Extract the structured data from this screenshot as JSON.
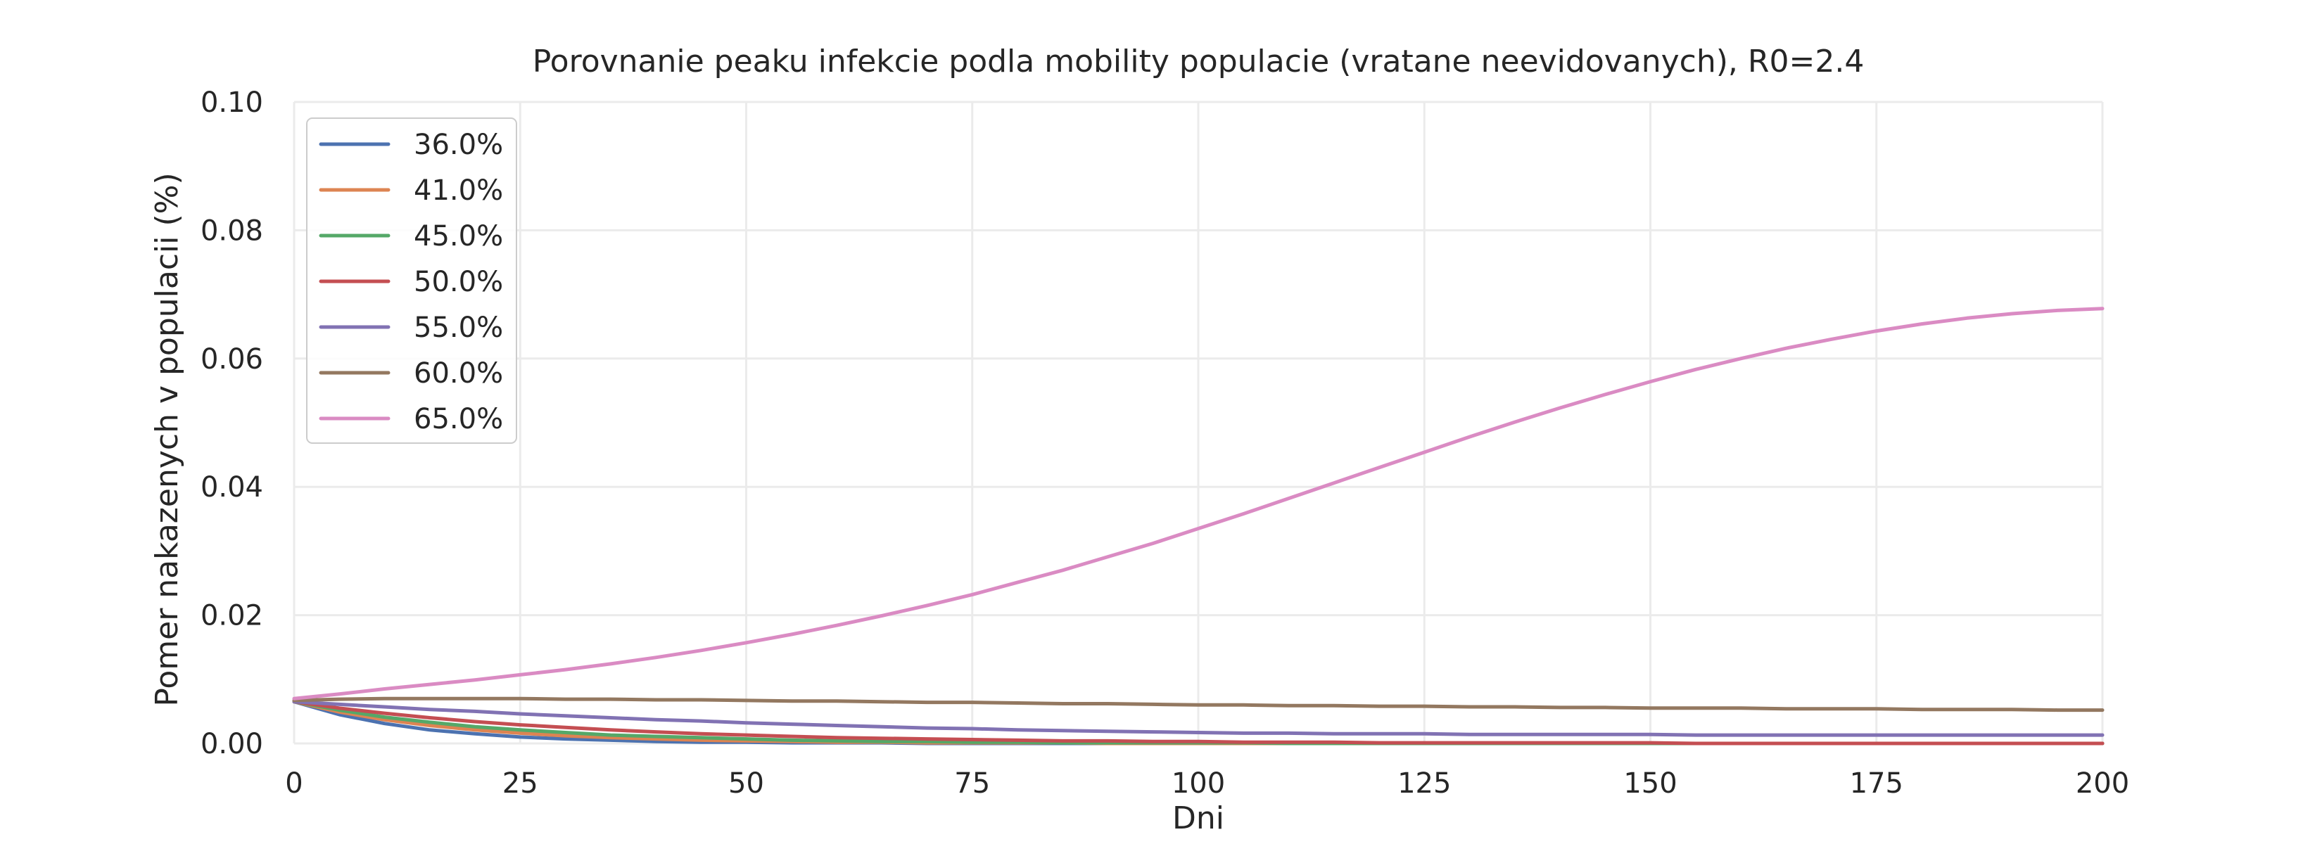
{
  "chart_data": {
    "type": "line",
    "title": "Porovnanie peaku infekcie podla mobility populacie (vratane neevidovanych), R0=2.4",
    "xlabel": "Dni",
    "ylabel": "Pomer nakazenych v populacii (%)",
    "xlim": [
      0,
      200
    ],
    "ylim": [
      0,
      0.1
    ],
    "x_ticks": [
      0,
      25,
      50,
      75,
      100,
      125,
      150,
      175,
      200
    ],
    "y_ticks": [
      0.0,
      0.02,
      0.04,
      0.06,
      0.08,
      0.1
    ],
    "x_tick_labels": [
      "0",
      "25",
      "50",
      "75",
      "100",
      "125",
      "150",
      "175",
      "200"
    ],
    "y_tick_labels": [
      "0.00",
      "0.02",
      "0.04",
      "0.06",
      "0.08",
      "0.10"
    ],
    "grid": true,
    "legend_position": "top-left",
    "x": [
      0,
      5,
      10,
      15,
      20,
      25,
      30,
      35,
      40,
      45,
      50,
      55,
      60,
      65,
      70,
      75,
      80,
      85,
      90,
      95,
      100,
      105,
      110,
      115,
      120,
      125,
      130,
      135,
      140,
      145,
      150,
      155,
      160,
      165,
      170,
      175,
      180,
      185,
      190,
      195,
      200
    ],
    "series": [
      {
        "name": "36.0%",
        "color": "#4C72B0",
        "values": [
          0.0065,
          0.0045,
          0.0031,
          0.0021,
          0.0015,
          0.001,
          0.0007,
          0.0005,
          0.0003,
          0.0002,
          0.0002,
          0.0001,
          0.0001,
          0.0001,
          0.0,
          0.0,
          0.0,
          0.0,
          0.0,
          0.0,
          0.0,
          0.0,
          0.0,
          0.0,
          0.0,
          0.0,
          0.0,
          0.0,
          0.0,
          0.0,
          0.0,
          0.0,
          0.0,
          0.0,
          0.0,
          0.0,
          0.0,
          0.0,
          0.0,
          0.0,
          0.0
        ]
      },
      {
        "name": "41.0%",
        "color": "#DD8452",
        "values": [
          0.0065,
          0.0049,
          0.0037,
          0.0028,
          0.0021,
          0.0016,
          0.0012,
          0.0009,
          0.0007,
          0.0005,
          0.0004,
          0.0003,
          0.0002,
          0.0002,
          0.0001,
          0.0001,
          0.0001,
          0.0001,
          0.0,
          0.0,
          0.0,
          0.0,
          0.0,
          0.0,
          0.0,
          0.0,
          0.0,
          0.0,
          0.0,
          0.0,
          0.0,
          0.0,
          0.0,
          0.0,
          0.0,
          0.0,
          0.0,
          0.0,
          0.0,
          0.0,
          0.0
        ]
      },
      {
        "name": "45.0%",
        "color": "#55A868",
        "values": [
          0.0065,
          0.0052,
          0.0041,
          0.0033,
          0.0026,
          0.0021,
          0.0017,
          0.0013,
          0.0011,
          0.0009,
          0.0007,
          0.0005,
          0.0004,
          0.0003,
          0.0003,
          0.0002,
          0.0002,
          0.0001,
          0.0001,
          0.0001,
          0.0001,
          0.0001,
          0.0,
          0.0,
          0.0,
          0.0,
          0.0,
          0.0,
          0.0,
          0.0,
          0.0,
          0.0,
          0.0,
          0.0,
          0.0,
          0.0,
          0.0,
          0.0,
          0.0,
          0.0,
          0.0
        ]
      },
      {
        "name": "50.0%",
        "color": "#C44E52",
        "values": [
          0.0065,
          0.0055,
          0.0047,
          0.004,
          0.0034,
          0.0029,
          0.0025,
          0.0021,
          0.0018,
          0.0015,
          0.0013,
          0.0011,
          0.0009,
          0.0008,
          0.0007,
          0.0006,
          0.0005,
          0.0004,
          0.0004,
          0.0003,
          0.0003,
          0.0002,
          0.0002,
          0.0002,
          0.0001,
          0.0001,
          0.0001,
          0.0001,
          0.0001,
          0.0001,
          0.0001,
          0.0,
          0.0,
          0.0,
          0.0,
          0.0,
          0.0,
          0.0,
          0.0,
          0.0,
          0.0
        ]
      },
      {
        "name": "55.0%",
        "color": "#8172B3",
        "values": [
          0.0065,
          0.0061,
          0.0057,
          0.0053,
          0.005,
          0.0046,
          0.0043,
          0.004,
          0.0037,
          0.0035,
          0.0032,
          0.003,
          0.0028,
          0.0026,
          0.0024,
          0.0023,
          0.0021,
          0.002,
          0.0019,
          0.0018,
          0.0017,
          0.0016,
          0.0016,
          0.0015,
          0.0015,
          0.0015,
          0.0014,
          0.0014,
          0.0014,
          0.0014,
          0.0014,
          0.0013,
          0.0013,
          0.0013,
          0.0013,
          0.0013,
          0.0013,
          0.0013,
          0.0013,
          0.0013,
          0.0013
        ]
      },
      {
        "name": "60.0%",
        "color": "#937860",
        "values": [
          0.0067,
          0.0069,
          0.007,
          0.007,
          0.007,
          0.007,
          0.0069,
          0.0069,
          0.0068,
          0.0068,
          0.0067,
          0.0066,
          0.0066,
          0.0065,
          0.0064,
          0.0064,
          0.0063,
          0.0062,
          0.0062,
          0.0061,
          0.006,
          0.006,
          0.0059,
          0.0059,
          0.0058,
          0.0058,
          0.0057,
          0.0057,
          0.0056,
          0.0056,
          0.0055,
          0.0055,
          0.0055,
          0.0054,
          0.0054,
          0.0054,
          0.0053,
          0.0053,
          0.0053,
          0.0052,
          0.0052
        ]
      },
      {
        "name": "65.0%",
        "color": "#DA8BC3",
        "values": [
          0.007,
          0.0077,
          0.0085,
          0.0092,
          0.0099,
          0.0107,
          0.0115,
          0.0124,
          0.0134,
          0.0145,
          0.0157,
          0.017,
          0.0184,
          0.0199,
          0.0215,
          0.0232,
          0.0251,
          0.027,
          0.0291,
          0.0312,
          0.0335,
          0.0358,
          0.0382,
          0.0406,
          0.043,
          0.0454,
          0.0478,
          0.0501,
          0.0523,
          0.0544,
          0.0564,
          0.0583,
          0.06,
          0.0616,
          0.063,
          0.0643,
          0.0654,
          0.0663,
          0.067,
          0.0675,
          0.0678
        ]
      }
    ]
  }
}
